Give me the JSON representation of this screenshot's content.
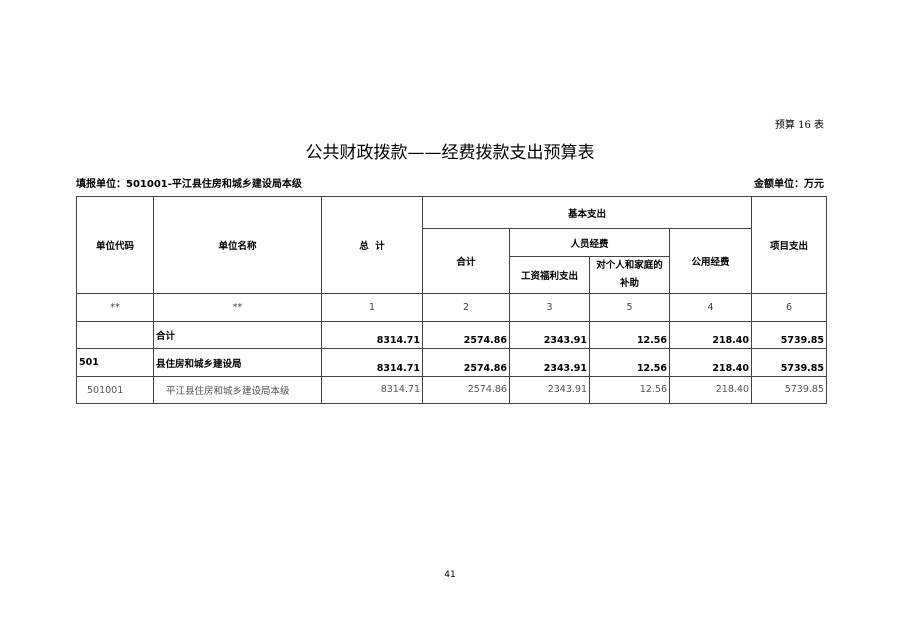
{
  "table_tag": "预算 16 表",
  "title": "公共财政拨款——经费拨款支出预算表",
  "reporting_unit": "填报单位：501001-平江县住房和城乡建设局本级",
  "amount_unit": "金额单位：万元",
  "headers": {
    "unit_code": "单位代码",
    "unit_name": "单位名称",
    "total": "总  计",
    "basic": "基本支出",
    "subtotal": "合计",
    "personnel": "人员经费",
    "wages": "工资福利支出",
    "subsidies": "对个人和家庭的补助",
    "public": "公用经费",
    "project": "项目支出"
  },
  "index_row": [
    "**",
    "**",
    "1",
    "2",
    "3",
    "5",
    "4",
    "6"
  ],
  "rows": [
    {
      "code": "",
      "name": "合计",
      "values": [
        "8314.71",
        "2574.86",
        "2343.91",
        "12.56",
        "218.40",
        "5739.85"
      ]
    },
    {
      "code": "501",
      "name": "县住房和城乡建设局",
      "values": [
        "8314.71",
        "2574.86",
        "2343.91",
        "12.56",
        "218.40",
        "5739.85"
      ]
    },
    {
      "code": "501001",
      "name": "平江县住房和城乡建设局本级",
      "values": [
        "8314.71",
        "2574.86",
        "2343.91",
        "12.56",
        "218.40",
        "5739.85"
      ]
    }
  ],
  "page_number": "41"
}
